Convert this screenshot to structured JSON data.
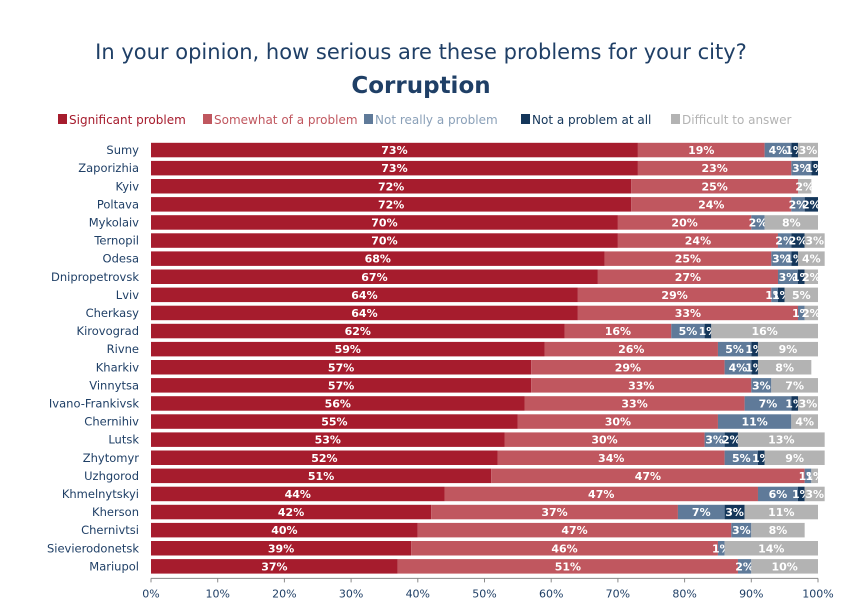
{
  "chart_data": {
    "type": "bar",
    "orientation": "horizontal",
    "stacked": true,
    "title": "In your opinion, how serious are these problems for your city?",
    "subtitle": "Corruption",
    "xlim": [
      0,
      100
    ],
    "x_ticks": [
      "0%",
      "10%",
      "20%",
      "30%",
      "40%",
      "50%",
      "60%",
      "70%",
      "80%",
      "90%",
      "100%"
    ],
    "grid": false,
    "legend_position": "top",
    "colors": [
      "#a61c2d",
      "#c0575f",
      "#5f7a99",
      "#14365a",
      "#b3b3b3"
    ],
    "legend_text_colors": [
      "#a61c2d",
      "#c0575f",
      "#8aa0b8",
      "#14365a",
      "#b3b3b3"
    ],
    "categories": [
      "Sumy",
      "Zaporizhia",
      "Kyiv",
      "Poltava",
      "Mykolaiv",
      "Ternopil",
      "Odesa",
      "Dnipropetrovsk",
      "Lviv",
      "Cherkasy",
      "Kirovograd",
      "Rivne",
      "Kharkiv",
      "Vinnytsa",
      "Ivano-Frankivsk",
      "Chernihiv",
      "Lutsk",
      "Zhytomyr",
      "Uzhgorod",
      "Khmelnytskyi",
      "Kherson",
      "Chernivtsi",
      "Sievierodonetsk",
      "Mariupol"
    ],
    "series": [
      {
        "name": "Significant problem",
        "values": [
          73,
          73,
          72,
          72,
          70,
          70,
          68,
          67,
          64,
          64,
          62,
          59,
          57,
          57,
          56,
          55,
          53,
          52,
          51,
          44,
          42,
          40,
          39,
          37
        ]
      },
      {
        "name": "Somewhat of a problem",
        "values": [
          19,
          23,
          25,
          24,
          20,
          24,
          25,
          27,
          29,
          33,
          16,
          26,
          29,
          33,
          33,
          30,
          30,
          34,
          47,
          47,
          37,
          47,
          46,
          51
        ]
      },
      {
        "name": "Not really a problem",
        "values": [
          4,
          3,
          0,
          2,
          2,
          2,
          3,
          3,
          1,
          1,
          5,
          5,
          4,
          3,
          7,
          11,
          3,
          5,
          1,
          6,
          7,
          3,
          1,
          2
        ]
      },
      {
        "name": "Not a problem at all",
        "values": [
          1,
          1,
          0,
          2,
          0,
          2,
          1,
          1,
          1,
          0,
          1,
          1,
          1,
          0,
          1,
          0,
          2,
          1,
          0,
          1,
          3,
          0,
          0,
          0
        ]
      },
      {
        "name": "Difficult to answer",
        "values": [
          3,
          0,
          2,
          0,
          8,
          3,
          4,
          2,
          5,
          2,
          16,
          9,
          8,
          7,
          3,
          4,
          13,
          9,
          1,
          3,
          11,
          8,
          14,
          10
        ]
      }
    ]
  }
}
